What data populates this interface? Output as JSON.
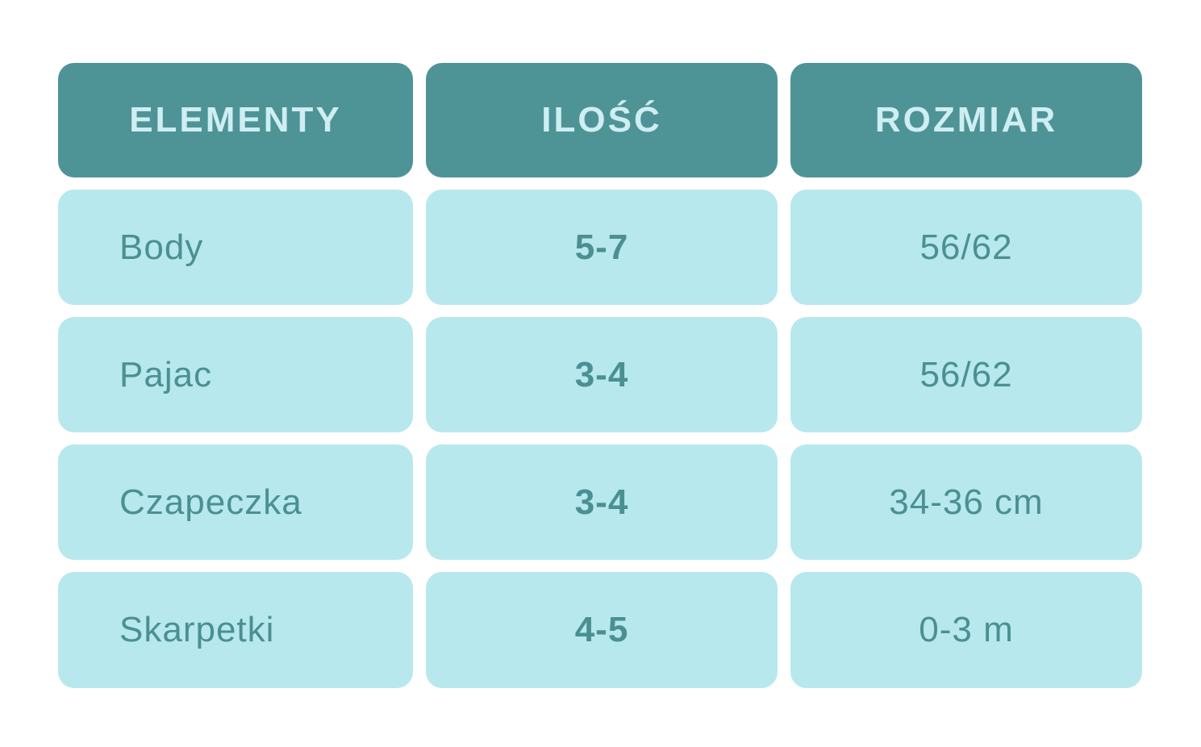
{
  "colors": {
    "page_background": "#ffffff",
    "header_background": "#4e9497",
    "header_text": "#cfeef2",
    "cell_background": "#b7e8ed",
    "cell_text": "#4a9093"
  },
  "chart_data": {
    "type": "table",
    "columns": [
      "ELEMENTY",
      "ILOŚĆ",
      "ROZMIAR"
    ],
    "rows": [
      [
        "Body",
        "5-7",
        "56/62"
      ],
      [
        "Pajac",
        "3-4",
        "56/62"
      ],
      [
        "Czapeczka",
        "3-4",
        "34-36 cm"
      ],
      [
        "Skarpetki",
        "4-5",
        "0-3 m"
      ]
    ]
  }
}
